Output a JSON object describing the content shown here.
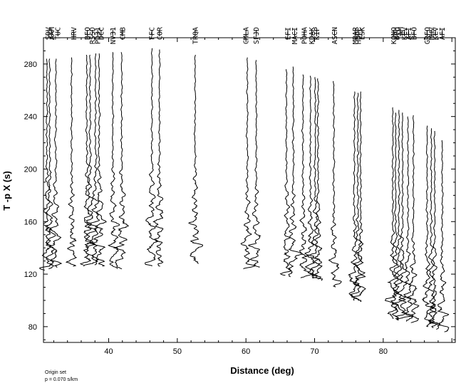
{
  "chart_data": {
    "type": "line",
    "xlabel": "Distance (deg)",
    "ylabel": "T -p X (s)",
    "xlim": [
      30.5,
      90.5
    ],
    "ylim": [
      68,
      300
    ],
    "x_ticks": [
      40,
      50,
      60,
      70,
      80
    ],
    "y_ticks": [
      80,
      120,
      160,
      200,
      240,
      280
    ],
    "notes": [
      "Origin set",
      "p = 0.070 s/km"
    ],
    "line_color": "#000000",
    "traces": [
      {
        "station": "SDV",
        "distance": 31.0,
        "start": 284,
        "onset": 160,
        "end": 123
      },
      {
        "station": "AAM",
        "distance": 31.4,
        "start": 284,
        "onset": 158,
        "end": 124
      },
      {
        "station": "TUC",
        "distance": 32.3,
        "start": 284,
        "onset": 156,
        "end": 125
      },
      {
        "station": "HRV",
        "distance": 34.6,
        "start": 285,
        "onset": 155,
        "end": 126
      },
      {
        "station": "BFQ",
        "distance": 36.8,
        "start": 287,
        "onset": 163,
        "end": 127
      },
      {
        "station": "RSSD",
        "distance": 37.3,
        "start": 287,
        "onset": 162,
        "end": 126
      },
      {
        "station": "PD31",
        "distance": 38.1,
        "start": 288,
        "onset": 164,
        "end": 127
      },
      {
        "station": "DCC",
        "distance": 38.6,
        "start": 288,
        "onset": 163,
        "end": 126
      },
      {
        "station": "NV31",
        "distance": 40.6,
        "start": 289,
        "onset": 162,
        "end": 124
      },
      {
        "station": "CMB",
        "distance": 41.9,
        "start": 289,
        "onset": 163,
        "end": 124
      },
      {
        "station": "FFC",
        "distance": 46.3,
        "start": 292,
        "onset": 165,
        "end": 126
      },
      {
        "station": "COR",
        "distance": 47.4,
        "start": 291,
        "onset": 164,
        "end": 126
      },
      {
        "station": "TRQA",
        "distance": 52.6,
        "start": 287,
        "onset": 161,
        "end": 128
      },
      {
        "station": "CMLA",
        "distance": 60.2,
        "start": 285,
        "onset": 150,
        "end": 124
      },
      {
        "station": "SFJD",
        "distance": 61.5,
        "start": 283,
        "onset": 149,
        "end": 125
      },
      {
        "station": "EFI",
        "distance": 65.9,
        "start": 276,
        "onset": 148,
        "end": 119
      },
      {
        "station": "MACI",
        "distance": 66.9,
        "start": 278,
        "onset": 145,
        "end": 118
      },
      {
        "station": "POHA",
        "distance": 68.3,
        "start": 272,
        "onset": 142,
        "end": 117
      },
      {
        "station": "KDAK",
        "distance": 69.4,
        "start": 271,
        "onset": 141,
        "end": 117
      },
      {
        "station": "KIP",
        "distance": 70.1,
        "start": 270,
        "onset": 141,
        "end": 116
      },
      {
        "station": "KBS",
        "distance": 70.5,
        "start": 269,
        "onset": 140,
        "end": 115
      },
      {
        "station": "ASCN",
        "distance": 72.8,
        "start": 267,
        "onset": 131,
        "end": 110
      },
      {
        "station": "MBAR",
        "distance": 75.8,
        "start": 259,
        "onset": 126,
        "end": 100
      },
      {
        "station": "HOPE",
        "distance": 76.3,
        "start": 258,
        "onset": 125,
        "end": 100
      },
      {
        "station": "ESK",
        "distance": 76.7,
        "start": 259,
        "onset": 125,
        "end": 99
      },
      {
        "station": "KONO",
        "distance": 81.4,
        "start": 247,
        "onset": 114,
        "end": 86
      },
      {
        "station": "BFO",
        "distance": 81.8,
        "start": 243,
        "onset": 113,
        "end": 86
      },
      {
        "station": "TAM",
        "distance": 82.3,
        "start": 245,
        "onset": 112,
        "end": 85
      },
      {
        "station": "BORG",
        "distance": 82.8,
        "start": 243,
        "onset": 112,
        "end": 85
      },
      {
        "station": "KEV",
        "distance": 83.6,
        "start": 240,
        "onset": 111,
        "end": 84
      },
      {
        "station": "AFI",
        "distance": 84.4,
        "start": 241,
        "onset": 109,
        "end": 83
      },
      {
        "station": "GRFO",
        "distance": 86.4,
        "start": 233,
        "onset": 104,
        "end": 80
      },
      {
        "station": "MHV",
        "distance": 87.0,
        "start": 231,
        "onset": 104,
        "end": 79
      },
      {
        "station": "KEV2",
        "distance": 87.5,
        "start": 229,
        "onset": 103,
        "end": 78
      },
      {
        "station": "AFI2",
        "distance": 88.6,
        "start": 222,
        "onset": 102,
        "end": 76
      }
    ],
    "top_labels": [
      {
        "text": "SDV",
        "distance": 31.2
      },
      {
        "text": "AAM",
        "distance": 31.7
      },
      {
        "text": "TUC",
        "distance": 32.6
      },
      {
        "text": "HRV",
        "distance": 34.9
      },
      {
        "text": "BFO",
        "distance": 36.9
      },
      {
        "text": "RSSD",
        "distance": 37.6
      },
      {
        "text": "PD31",
        "distance": 38.4
      },
      {
        "text": "DCC",
        "distance": 38.9
      },
      {
        "text": "NV31",
        "distance": 40.6
      },
      {
        "text": "CMB",
        "distance": 42.0
      },
      {
        "text": "FFC",
        "distance": 46.3
      },
      {
        "text": "COR",
        "distance": 47.4
      },
      {
        "text": "TRQA",
        "distance": 52.6
      },
      {
        "text": "CMLA",
        "distance": 60.0
      },
      {
        "text": "SFJD",
        "distance": 61.5
      },
      {
        "text": "EFI",
        "distance": 66.1
      },
      {
        "text": "MACI",
        "distance": 67.1
      },
      {
        "text": "POHA",
        "distance": 68.5
      },
      {
        "text": "KDAK",
        "distance": 69.6
      },
      {
        "text": "KIP",
        "distance": 70.3
      },
      {
        "text": "ASCN",
        "distance": 72.9
      },
      {
        "text": "MBAR",
        "distance": 75.9
      },
      {
        "text": "HOPE",
        "distance": 76.4
      },
      {
        "text": "ESK",
        "distance": 76.9
      },
      {
        "text": "KONO",
        "distance": 81.5
      },
      {
        "text": "BFO",
        "distance": 82.0
      },
      {
        "text": "TAM",
        "distance": 82.5
      },
      {
        "text": "KEV",
        "distance": 83.1
      },
      {
        "text": "AFI",
        "distance": 83.7
      },
      {
        "text": "BFO",
        "distance": 84.5
      },
      {
        "text": "GRFO",
        "distance": 86.4
      },
      {
        "text": "MHV",
        "distance": 87.0
      },
      {
        "text": "KEV",
        "distance": 87.6
      },
      {
        "text": "AFI",
        "distance": 88.6
      }
    ]
  }
}
